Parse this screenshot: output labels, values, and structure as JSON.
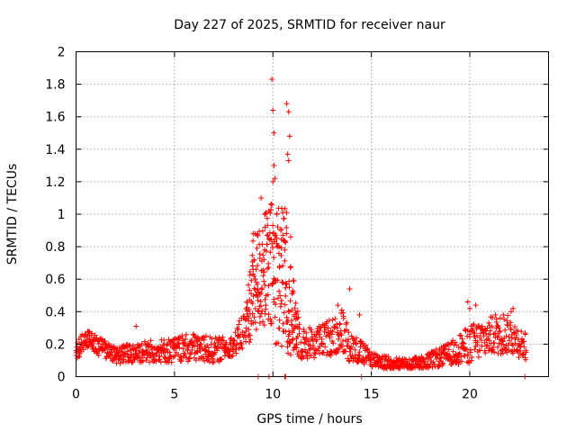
{
  "chart_data": {
    "type": "scatter",
    "title": "Day 227 of 2025, SRMTID for receiver naur",
    "xlabel": "GPS time / hours",
    "ylabel": "SRMTID / TECUs",
    "xlim": [
      0,
      24
    ],
    "ylim": [
      0,
      2
    ],
    "x_ticks": [
      0,
      5,
      10,
      15,
      20
    ],
    "x_tick_labels": [
      "0",
      "5",
      "10",
      "15",
      "20"
    ],
    "y_ticks": [
      0,
      0.2,
      0.4,
      0.6,
      0.8,
      1,
      1.2,
      1.4,
      1.6,
      1.8,
      2
    ],
    "y_tick_labels": [
      "0",
      "0.2",
      "0.4",
      "0.6",
      "0.8",
      "1",
      "1.2",
      "1.4",
      "1.6",
      "1.8",
      "2"
    ],
    "grid": true,
    "marker": "+",
    "color": "#ff0000",
    "series": [
      {
        "name": "SRMTID",
        "sampling_interval_hours": 0.05,
        "time_range": [
          0,
          22.9
        ],
        "envelope": [
          {
            "t": 0.0,
            "base": 0.14,
            "spread": 0.07
          },
          {
            "t": 0.5,
            "base": 0.24,
            "spread": 0.06
          },
          {
            "t": 1.0,
            "base": 0.2,
            "spread": 0.06
          },
          {
            "t": 2.0,
            "base": 0.13,
            "spread": 0.05
          },
          {
            "t": 3.0,
            "base": 0.15,
            "spread": 0.07
          },
          {
            "t": 4.0,
            "base": 0.16,
            "spread": 0.07
          },
          {
            "t": 5.0,
            "base": 0.16,
            "spread": 0.08
          },
          {
            "t": 6.0,
            "base": 0.18,
            "spread": 0.09
          },
          {
            "t": 7.0,
            "base": 0.16,
            "spread": 0.08
          },
          {
            "t": 8.0,
            "base": 0.19,
            "spread": 0.06
          },
          {
            "t": 8.6,
            "base": 0.3,
            "spread": 0.14
          },
          {
            "t": 9.0,
            "base": 0.55,
            "spread": 0.3
          },
          {
            "t": 9.5,
            "base": 0.65,
            "spread": 0.35
          },
          {
            "t": 10.0,
            "base": 0.65,
            "spread": 0.45
          },
          {
            "t": 10.6,
            "base": 0.6,
            "spread": 0.45
          },
          {
            "t": 11.0,
            "base": 0.38,
            "spread": 0.25
          },
          {
            "t": 11.5,
            "base": 0.2,
            "spread": 0.1
          },
          {
            "t": 12.5,
            "base": 0.22,
            "spread": 0.1
          },
          {
            "t": 13.5,
            "base": 0.28,
            "spread": 0.14
          },
          {
            "t": 14.0,
            "base": 0.18,
            "spread": 0.1
          },
          {
            "t": 15.0,
            "base": 0.11,
            "spread": 0.05
          },
          {
            "t": 16.0,
            "base": 0.08,
            "spread": 0.04
          },
          {
            "t": 17.0,
            "base": 0.07,
            "spread": 0.04
          },
          {
            "t": 18.0,
            "base": 0.1,
            "spread": 0.05
          },
          {
            "t": 19.0,
            "base": 0.14,
            "spread": 0.07
          },
          {
            "t": 20.0,
            "base": 0.2,
            "spread": 0.12
          },
          {
            "t": 21.0,
            "base": 0.25,
            "spread": 0.12
          },
          {
            "t": 22.0,
            "base": 0.26,
            "spread": 0.12
          },
          {
            "t": 22.9,
            "base": 0.18,
            "spread": 0.08
          }
        ],
        "peaks": [
          {
            "x": 9.0,
            "y": 0.88
          },
          {
            "x": 9.4,
            "y": 1.1
          },
          {
            "x": 9.6,
            "y": 0.92
          },
          {
            "x": 9.95,
            "y": 1.83
          },
          {
            "x": 10.0,
            "y": 1.64
          },
          {
            "x": 10.05,
            "y": 1.5
          },
          {
            "x": 10.05,
            "y": 1.3
          },
          {
            "x": 10.1,
            "y": 1.22
          },
          {
            "x": 10.0,
            "y": 1.2
          },
          {
            "x": 10.2,
            "y": 1.0
          },
          {
            "x": 10.4,
            "y": 0.9
          },
          {
            "x": 10.5,
            "y": 1.01
          },
          {
            "x": 10.7,
            "y": 1.68
          },
          {
            "x": 10.8,
            "y": 1.63
          },
          {
            "x": 10.85,
            "y": 1.48
          },
          {
            "x": 10.75,
            "y": 1.37
          },
          {
            "x": 10.8,
            "y": 1.33
          },
          {
            "x": 10.7,
            "y": 1.01
          },
          {
            "x": 10.9,
            "y": 0.86
          },
          {
            "x": 10.6,
            "y": 0.78
          },
          {
            "x": 3.05,
            "y": 0.31
          },
          {
            "x": 13.3,
            "y": 0.44
          },
          {
            "x": 13.5,
            "y": 0.41
          },
          {
            "x": 13.9,
            "y": 0.54
          },
          {
            "x": 14.4,
            "y": 0.38
          },
          {
            "x": 19.9,
            "y": 0.46
          },
          {
            "x": 20.0,
            "y": 0.42
          },
          {
            "x": 20.3,
            "y": 0.44
          },
          {
            "x": 21.3,
            "y": 0.38
          },
          {
            "x": 21.7,
            "y": 0.38
          },
          {
            "x": 22.1,
            "y": 0.4
          },
          {
            "x": 22.2,
            "y": 0.42
          }
        ],
        "zero_values": [
          {
            "x": 9.25,
            "y": 0
          },
          {
            "x": 9.8,
            "y": 0
          },
          {
            "x": 10.6,
            "y": 0
          },
          {
            "x": 10.65,
            "y": 0
          },
          {
            "x": 14.5,
            "y": 0
          },
          {
            "x": 22.8,
            "y": 0
          }
        ]
      }
    ]
  }
}
